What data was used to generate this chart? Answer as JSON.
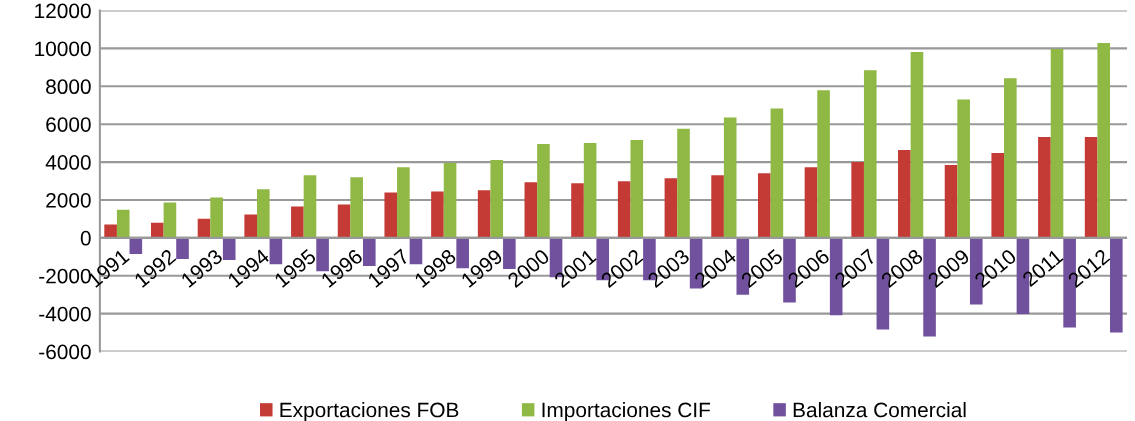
{
  "chart_data": {
    "type": "bar",
    "categories": [
      "1991",
      "1992",
      "1993",
      "1994",
      "1995",
      "1996",
      "1997",
      "1998",
      "1999",
      "2000",
      "2001",
      "2002",
      "2003",
      "2004",
      "2005",
      "2006",
      "2007",
      "2008",
      "2009",
      "2010",
      "2011",
      "2012"
    ],
    "series": [
      {
        "name": "Exportaciones FOB",
        "color": "#c43a35",
        "values": [
          700,
          800,
          1010,
          1230,
          1650,
          1760,
          2400,
          2450,
          2510,
          2930,
          2880,
          2990,
          3150,
          3310,
          3410,
          3730,
          4000,
          4640,
          3840,
          4480,
          5330,
          5330
        ]
      },
      {
        "name": "Importaciones CIF",
        "color": "#8fb844",
        "values": [
          1490,
          1870,
          2130,
          2560,
          3310,
          3200,
          3730,
          3950,
          4110,
          4960,
          5010,
          5170,
          5760,
          6350,
          6830,
          7790,
          8850,
          9810,
          7310,
          8430,
          9970,
          10290
        ]
      },
      {
        "name": "Balanza Comercial",
        "color": "#71519e",
        "values": [
          -850,
          -1120,
          -1170,
          -1390,
          -1760,
          -1490,
          -1390,
          -1600,
          -1650,
          -2080,
          -2240,
          -2240,
          -2670,
          -3000,
          -3410,
          -4090,
          -4840,
          -5210,
          -3520,
          -4020,
          -4730,
          -5000
        ]
      }
    ],
    "ylim": [
      -6000,
      12000
    ],
    "yticks": [
      -6000,
      -4000,
      -2000,
      0,
      2000,
      4000,
      6000,
      8000,
      10000,
      12000
    ],
    "grid": "y",
    "legend": "bottom"
  }
}
